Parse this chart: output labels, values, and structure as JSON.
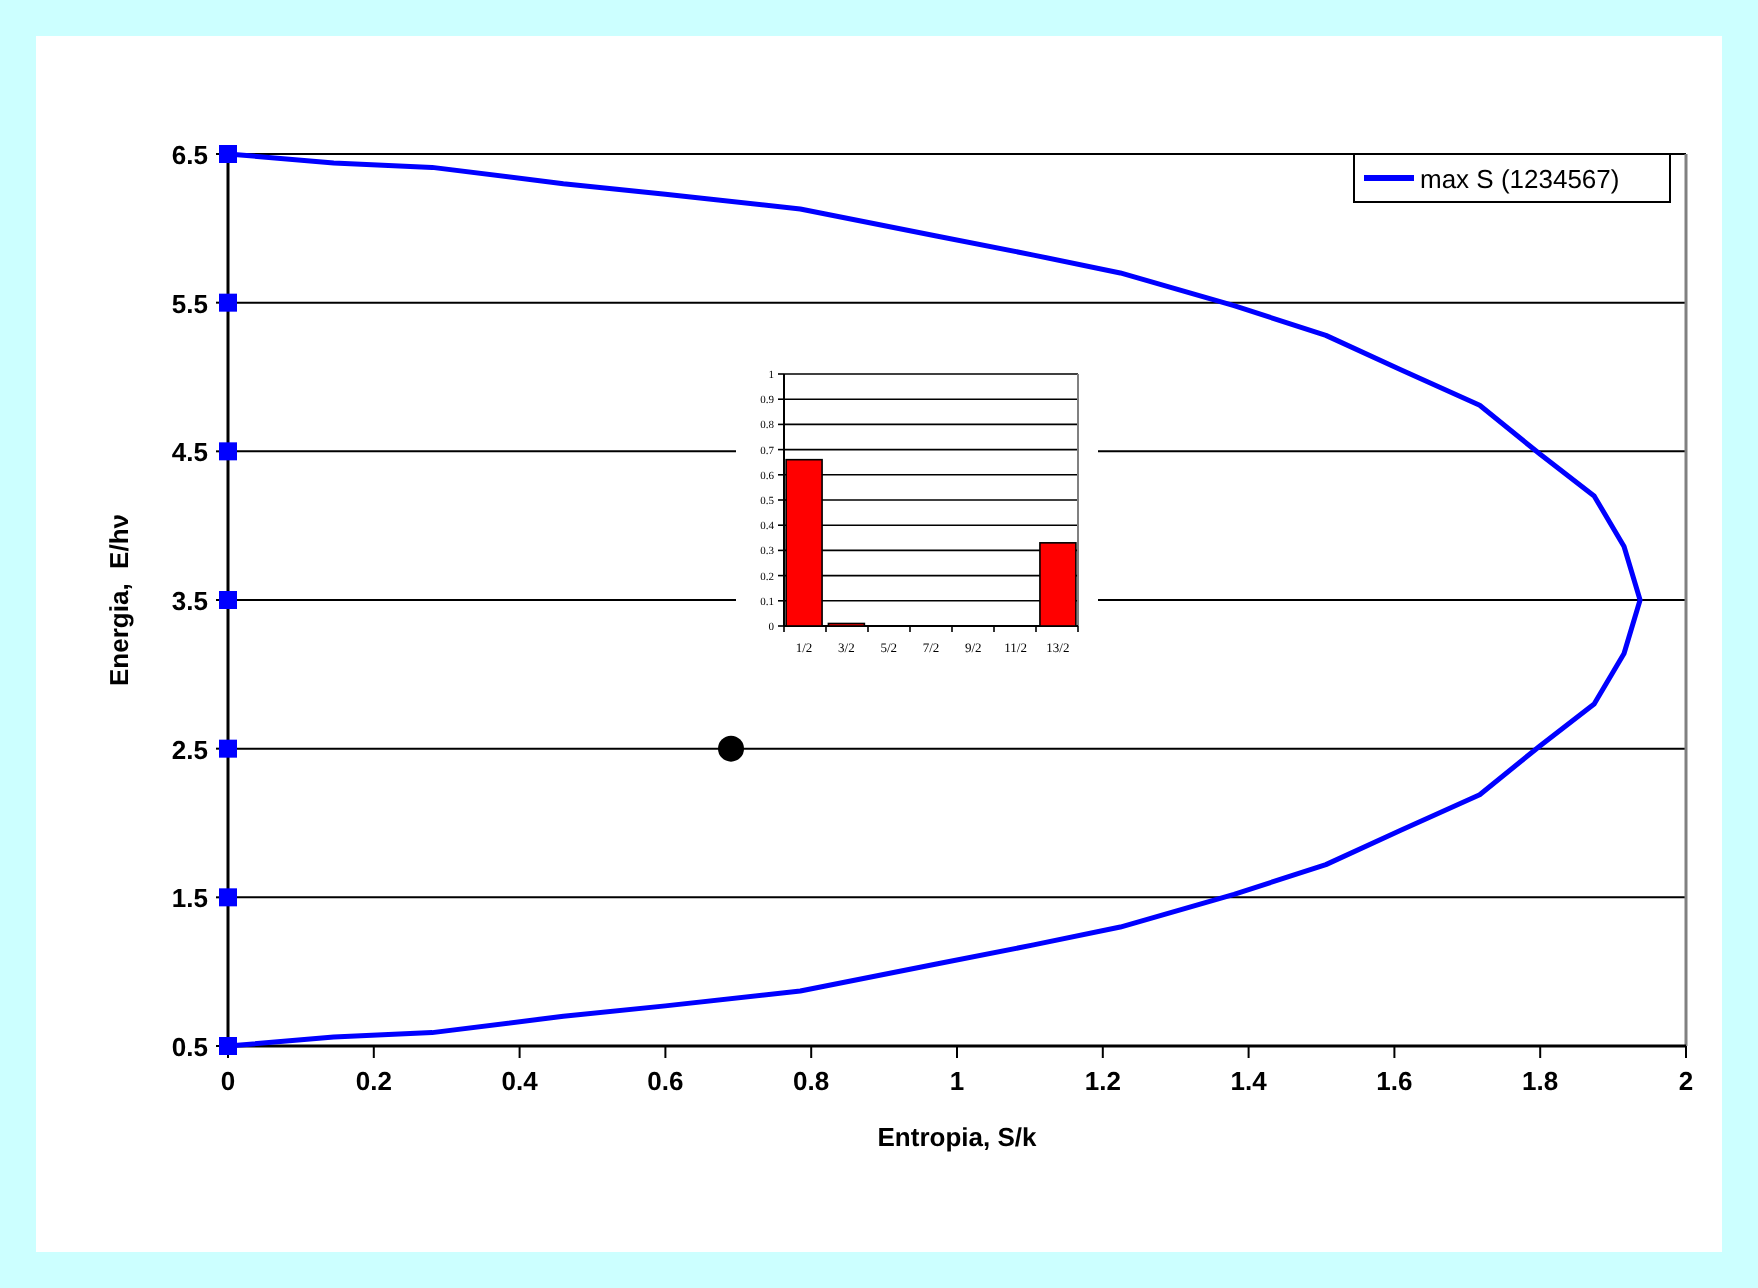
{
  "chart_data": [
    {
      "type": "line",
      "xlabel": "Entropia, S/k",
      "ylabel": "Energia,  E/hν",
      "xlim": [
        0,
        2
      ],
      "xticks": [
        0,
        0.2,
        0.4,
        0.6,
        0.8,
        1,
        1.2,
        1.4,
        1.6,
        1.8,
        2
      ],
      "ylim": [
        0.5,
        6.5
      ],
      "yticks": [
        0.5,
        1.5,
        2.5,
        3.5,
        4.5,
        5.5,
        6.5
      ],
      "grid": "y",
      "legend": "top right",
      "series": [
        {
          "name": "max S (1234567)",
          "type": "line",
          "color": "#0000ff",
          "marker": "none",
          "x": [
            0,
            0.145,
            0.28,
            0.46,
            0.6,
            0.785,
            0.97,
            1.105,
            1.224,
            1.38,
            1.506,
            1.608,
            1.717,
            1.8,
            1.874,
            1.915,
            1.937,
            1.915,
            1.874,
            1.8,
            1.717,
            1.608,
            1.506,
            1.38,
            1.224,
            1.105,
            0.97,
            0.785,
            0.6,
            0.46,
            0.28,
            0.145,
            0
          ],
          "values": [
            6.5,
            6.44,
            6.41,
            6.3,
            6.23,
            6.13,
            5.95,
            5.82,
            5.7,
            5.48,
            5.28,
            5.05,
            4.81,
            4.48,
            4.2,
            3.86,
            3.5,
            3.14,
            2.8,
            2.52,
            2.19,
            1.95,
            1.72,
            1.52,
            1.3,
            1.18,
            1.05,
            0.87,
            0.77,
            0.7,
            0.59,
            0.56,
            0.5
          ]
        },
        {
          "type": "scatter",
          "color": "#0000ff",
          "marker": "square",
          "x": [
            0,
            0,
            0,
            0,
            0,
            0,
            0
          ],
          "values": [
            0.5,
            1.5,
            2.5,
            3.5,
            4.5,
            5.5,
            6.5
          ]
        },
        {
          "type": "scatter",
          "color": "#000000",
          "marker": "circle",
          "x": [
            0.69
          ],
          "values": [
            2.5
          ]
        }
      ]
    },
    {
      "type": "bar",
      "categories": [
        "1/2",
        "3/2",
        "5/2",
        "7/2",
        "9/2",
        "11/2",
        "13/2"
      ],
      "values": [
        0.66,
        0.01,
        0,
        0,
        0,
        0,
        0.33
      ],
      "color": "#ff0000",
      "ylim": [
        0,
        1
      ],
      "yticks": [
        0,
        0.1,
        0.2,
        0.3,
        0.4,
        0.5,
        0.6,
        0.7,
        0.8,
        0.9,
        1
      ],
      "grid": "y"
    }
  ]
}
